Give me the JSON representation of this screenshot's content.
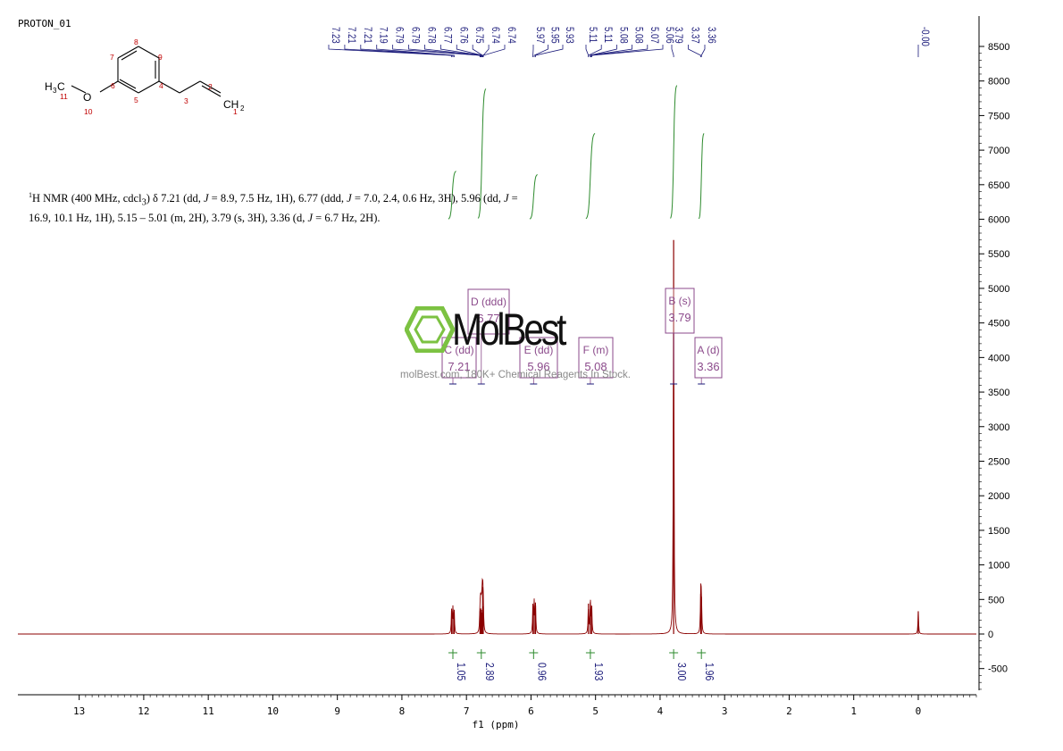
{
  "dataset_label": "PROTON_01",
  "description": {
    "prefix_sup": "1",
    "text_parts": [
      "H NMR (400 MHz, cdcl",
      "3",
      ") δ 7.21 (dd, ",
      "J",
      " = 8.9, 7.5 Hz, 1H), 6.77 (ddd, ",
      "J",
      " = 7.0, 2.4, 0.6 Hz, 3H), 5.96 (dd, ",
      "J",
      " = 16.9, 10.1 Hz, 1H), 5.15 – 5.01 (m, 2H), 3.79 (s, 3H), 3.36 (d, ",
      "J",
      " = 6.7 Hz, 2H)."
    ]
  },
  "watermark": {
    "logo_text": "MolBest",
    "subtitle": "molBest.com, 180K+ Chemical Reagents In Stock."
  },
  "molecule": {
    "atom_labels": [
      "H3C",
      "O",
      "CH2"
    ],
    "atom_numbers": [
      "1",
      "2",
      "3",
      "4",
      "5",
      "6",
      "7",
      "8",
      "9",
      "10",
      "11"
    ]
  },
  "colors": {
    "spectrum": "#8b0000",
    "integral": "#2e8b2e",
    "peak_labels": "#1a1a7a",
    "multiplet_box": "#8b4a8b",
    "integral_values": "#1a1a7a"
  },
  "chart_data": {
    "type": "line",
    "xlabel": "f1  (ppm)",
    "x_ticks": [
      "13",
      "12",
      "11",
      "10",
      "9",
      "8",
      "7",
      "6",
      "5",
      "4",
      "3",
      "2",
      "1",
      "0"
    ],
    "y_ticks": [
      "8500",
      "8000",
      "7500",
      "7000",
      "6500",
      "6000",
      "5500",
      "5000",
      "4500",
      "4000",
      "3500",
      "3000",
      "2500",
      "2000",
      "1500",
      "1000",
      "500",
      "0",
      "-500"
    ],
    "xlim": [
      13.95,
      -0.9
    ],
    "ylim": [
      -900,
      8900
    ],
    "peak_labels": [
      "7.23",
      "7.21",
      "7.21",
      "7.19",
      "6.79",
      "6.79",
      "6.78",
      "6.77",
      "6.76",
      "6.75",
      "6.74",
      "6.74",
      "5.97",
      "5.95",
      "5.93",
      "5.11",
      "5.11",
      "5.08",
      "5.08",
      "5.07",
      "5.06",
      "3.79",
      "3.37",
      "3.36",
      "-0.00"
    ],
    "peaks": [
      {
        "ppm": 7.23,
        "height": 340
      },
      {
        "ppm": 7.21,
        "height": 360
      },
      {
        "ppm": 7.19,
        "height": 320
      },
      {
        "ppm": 6.79,
        "height": 330
      },
      {
        "ppm": 6.78,
        "height": 370
      },
      {
        "ppm": 6.77,
        "height": 350
      },
      {
        "ppm": 6.76,
        "height": 310
      },
      {
        "ppm": 6.75,
        "height": 680
      },
      {
        "ppm": 6.74,
        "height": 400
      },
      {
        "ppm": 5.97,
        "height": 420
      },
      {
        "ppm": 5.95,
        "height": 450
      },
      {
        "ppm": 5.93,
        "height": 410
      },
      {
        "ppm": 5.11,
        "height": 440
      },
      {
        "ppm": 5.08,
        "height": 460
      },
      {
        "ppm": 5.06,
        "height": 410
      },
      {
        "ppm": 3.79,
        "height": 5700
      },
      {
        "ppm": 3.37,
        "height": 580
      },
      {
        "ppm": 3.36,
        "height": 540
      },
      {
        "ppm": 0.0,
        "height": 330
      }
    ],
    "multiplets": [
      {
        "letter": "A",
        "type": "d",
        "shift": "3.36",
        "label": "A (d)",
        "ppm": 3.36
      },
      {
        "letter": "B",
        "type": "s",
        "shift": "3.79",
        "label": "B (s)",
        "ppm": 3.79
      },
      {
        "letter": "C",
        "type": "dd",
        "shift": "7.21",
        "label": "C (dd)",
        "ppm": 7.21
      },
      {
        "letter": "D",
        "type": "ddd",
        "shift": "6.77",
        "label": "D (ddd)",
        "ppm": 6.77
      },
      {
        "letter": "E",
        "type": "dd",
        "shift": "5.96",
        "label": "E (dd)",
        "ppm": 5.96
      },
      {
        "letter": "F",
        "type": "m",
        "shift": "5.08",
        "label": "F (m)",
        "ppm": 5.08
      }
    ],
    "integrals": [
      {
        "ppm": 7.21,
        "value": "1.05"
      },
      {
        "ppm": 6.77,
        "value": "2.89"
      },
      {
        "ppm": 5.96,
        "value": "0.96"
      },
      {
        "ppm": 5.08,
        "value": "1.93"
      },
      {
        "ppm": 3.79,
        "value": "3.00"
      },
      {
        "ppm": 3.36,
        "value": "1.96"
      }
    ],
    "integral_curves": [
      {
        "from": 7.28,
        "to": 7.16,
        "y_start": 6000,
        "y_end": 6700
      },
      {
        "from": 6.82,
        "to": 6.7,
        "y_start": 6000,
        "y_end": 7900
      },
      {
        "from": 6.02,
        "to": 5.9,
        "y_start": 6000,
        "y_end": 6650
      },
      {
        "from": 5.15,
        "to": 5.01,
        "y_start": 6000,
        "y_end": 7250
      },
      {
        "from": 3.84,
        "to": 3.74,
        "y_start": 6000,
        "y_end": 7950
      },
      {
        "from": 3.4,
        "to": 3.32,
        "y_start": 6000,
        "y_end": 7250
      }
    ]
  }
}
